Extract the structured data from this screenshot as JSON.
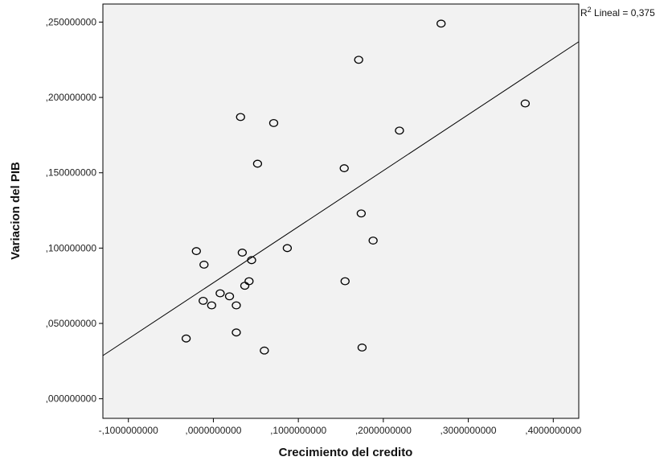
{
  "chart_data": {
    "type": "scatter",
    "xlabel": "Crecimiento del credito",
    "ylabel": "Variacion del PIB",
    "xlim": [
      -0.13,
      0.43
    ],
    "ylim": [
      -0.013,
      0.262
    ],
    "x_ticks": [
      -0.1,
      0.0,
      0.1,
      0.2,
      0.3,
      0.4
    ],
    "x_tick_labels": [
      "-,1000000000",
      ",0000000000",
      ",1000000000",
      ",2000000000",
      ",3000000000",
      ",4000000000"
    ],
    "y_ticks": [
      0.0,
      0.05,
      0.1,
      0.15,
      0.2,
      0.25
    ],
    "y_tick_labels": [
      ",000000000",
      ",050000000",
      ",100000000",
      ",150000000",
      ",200000000",
      ",250000000"
    ],
    "grid": false,
    "background": "#f2f2f2",
    "marker_color": "#000000",
    "points": [
      {
        "x": 0.268,
        "y": 0.249
      },
      {
        "x": 0.171,
        "y": 0.225
      },
      {
        "x": 0.367,
        "y": 0.196
      },
      {
        "x": 0.032,
        "y": 0.187
      },
      {
        "x": 0.071,
        "y": 0.183
      },
      {
        "x": 0.219,
        "y": 0.178
      },
      {
        "x": 0.052,
        "y": 0.156
      },
      {
        "x": 0.154,
        "y": 0.153
      },
      {
        "x": 0.174,
        "y": 0.123
      },
      {
        "x": 0.188,
        "y": 0.105
      },
      {
        "x": 0.087,
        "y": 0.1
      },
      {
        "x": -0.02,
        "y": 0.098
      },
      {
        "x": 0.034,
        "y": 0.097
      },
      {
        "x": -0.011,
        "y": 0.089
      },
      {
        "x": 0.045,
        "y": 0.092
      },
      {
        "x": 0.042,
        "y": 0.078
      },
      {
        "x": 0.037,
        "y": 0.075
      },
      {
        "x": 0.155,
        "y": 0.078
      },
      {
        "x": 0.008,
        "y": 0.07
      },
      {
        "x": 0.019,
        "y": 0.068
      },
      {
        "x": -0.012,
        "y": 0.065
      },
      {
        "x": -0.002,
        "y": 0.062
      },
      {
        "x": 0.027,
        "y": 0.062
      },
      {
        "x": 0.027,
        "y": 0.044
      },
      {
        "x": -0.032,
        "y": 0.04
      },
      {
        "x": 0.06,
        "y": 0.032
      },
      {
        "x": 0.175,
        "y": 0.034
      }
    ],
    "fit_line": {
      "label_prefix": "R",
      "label_sup": "2",
      "label_suffix": " Lineal = 0,375",
      "slope": 0.372,
      "intercept": 0.077
    }
  }
}
